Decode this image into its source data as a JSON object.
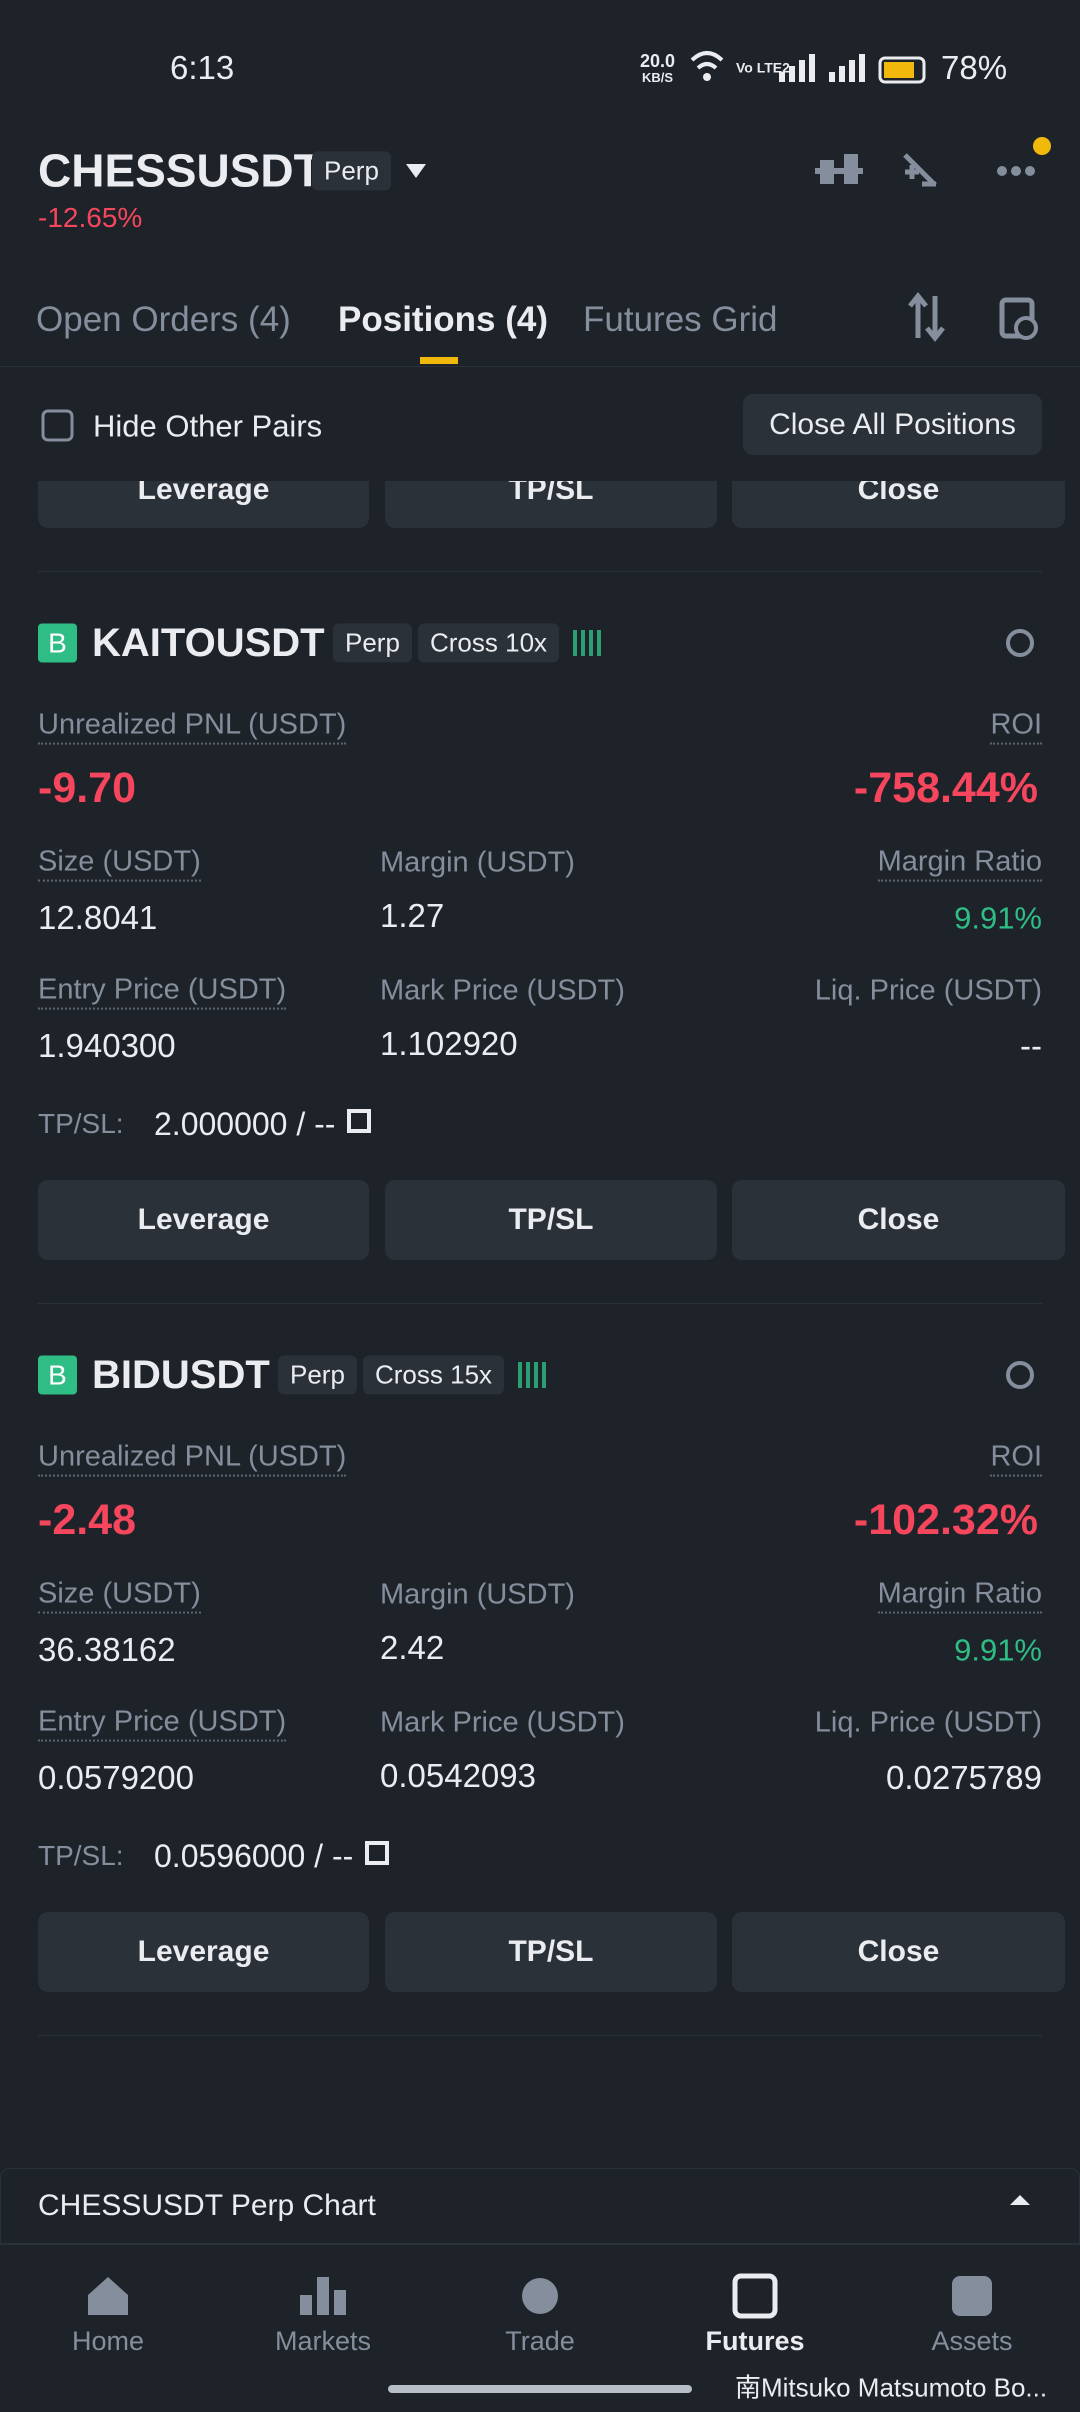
{
  "status": {
    "time": "6:13",
    "net_speed": "20.0",
    "net_unit": "KB/S",
    "net_type": "Vo LTE2",
    "battery": "78%"
  },
  "header": {
    "symbol": "CHESSUSDT",
    "badge": "Perp",
    "change": "-12.65%"
  },
  "tabs": [
    "Open Orders (4)",
    "Positions (4)",
    "Futures Grid"
  ],
  "filter": {
    "hide_label": "Hide Other Pairs",
    "close_all": "Close All Positions"
  },
  "partial_buttons": [
    "Leverage",
    "TP/SL",
    "Close"
  ],
  "positions": [
    {
      "side": "B",
      "symbol": "KAITOUSDT",
      "type": "Perp",
      "mode": "Cross 10x",
      "pnl_label": "Unrealized PNL (USDT)",
      "pnl": "-9.70",
      "roi_label": "ROI",
      "roi": "-758.44%",
      "size_label": "Size (USDT)",
      "size": "12.8041",
      "margin_label": "Margin (USDT)",
      "margin": "1.27",
      "ratio_label": "Margin Ratio",
      "ratio": "9.91%",
      "entry_label": "Entry Price (USDT)",
      "entry": "1.940300",
      "mark_label": "Mark Price (USDT)",
      "mark": "1.102920",
      "liq_label": "Liq. Price (USDT)",
      "liq": "--",
      "tpsl_label": "TP/SL:",
      "tpsl": "2.000000 / --",
      "buttons": [
        "Leverage",
        "TP/SL",
        "Close"
      ]
    },
    {
      "side": "B",
      "symbol": "BIDUSDT",
      "type": "Perp",
      "mode": "Cross 15x",
      "pnl_label": "Unrealized PNL (USDT)",
      "pnl": "-2.48",
      "roi_label": "ROI",
      "roi": "-102.32%",
      "size_label": "Size (USDT)",
      "size": "36.38162",
      "margin_label": "Margin (USDT)",
      "margin": "2.42",
      "ratio_label": "Margin Ratio",
      "ratio": "9.91%",
      "entry_label": "Entry Price (USDT)",
      "entry": "0.0579200",
      "mark_label": "Mark Price (USDT)",
      "mark": "0.0542093",
      "liq_label": "Liq. Price (USDT)",
      "liq": "0.0275789",
      "tpsl_label": "TP/SL:",
      "tpsl": "0.0596000 / --",
      "buttons": [
        "Leverage",
        "TP/SL",
        "Close"
      ]
    }
  ],
  "chart_bar": "CHESSUSDT Perp Chart",
  "nav": [
    "Home",
    "Markets",
    "Trade",
    "Futures",
    "Assets"
  ],
  "watermark": "南Mitsuko Matsumoto Bo..."
}
